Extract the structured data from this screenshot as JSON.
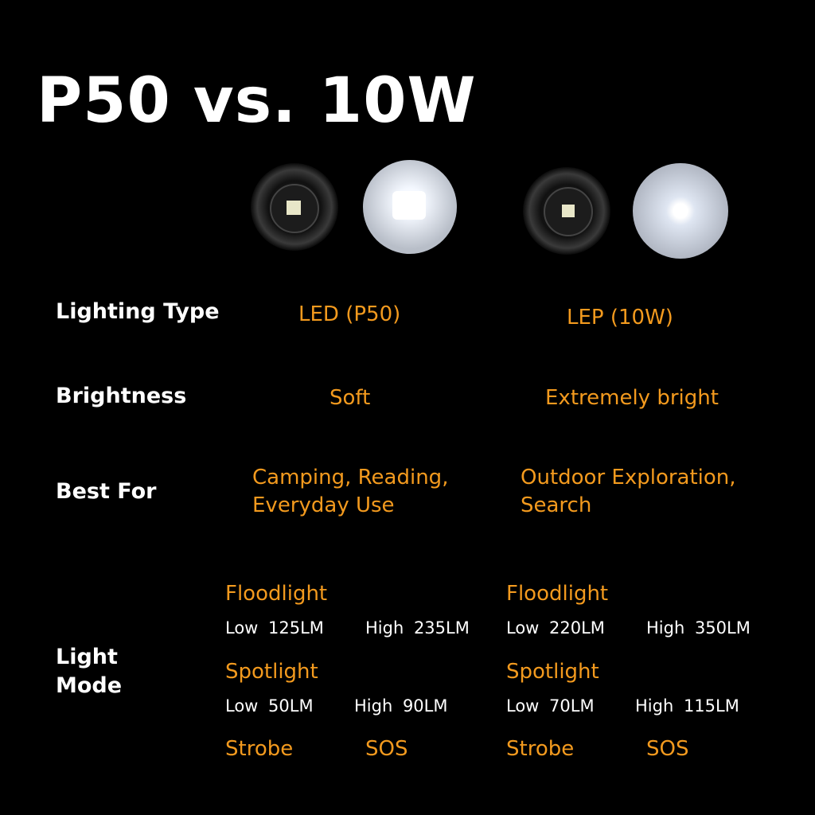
{
  "title": "P50 vs. 10W",
  "rows": [
    {
      "label": "Lighting Type",
      "values": [
        "LED (P50)",
        "LEP (10W)"
      ]
    },
    {
      "label": "Brightness",
      "values": [
        "Soft",
        "Extremely bright"
      ]
    },
    {
      "label": "Best For",
      "values": [
        [
          "Camping, Reading,",
          "Everyday Use"
        ],
        [
          "Outdoor Exploration,",
          "Search"
        ]
      ]
    }
  ],
  "light_mode": {
    "label": [
      "Light",
      "Mode"
    ],
    "columns": [
      {
        "floodlight": {
          "heading": "Floodlight",
          "low": "Low 125LM",
          "high": "High 235LM"
        },
        "spotlight": {
          "heading": "Spotlight",
          "low": "Low 50LM",
          "high": "High 90LM"
        },
        "strobe": "Strobe",
        "sos": "SOS"
      },
      {
        "floodlight": {
          "heading": "Floodlight",
          "low": "Low 220LM",
          "high": "High 350LM"
        },
        "spotlight": {
          "heading": "Spotlight",
          "low": "Low 70LM",
          "high": "High 115LM"
        },
        "strobe": "Strobe",
        "sos": "SOS"
      }
    ]
  }
}
